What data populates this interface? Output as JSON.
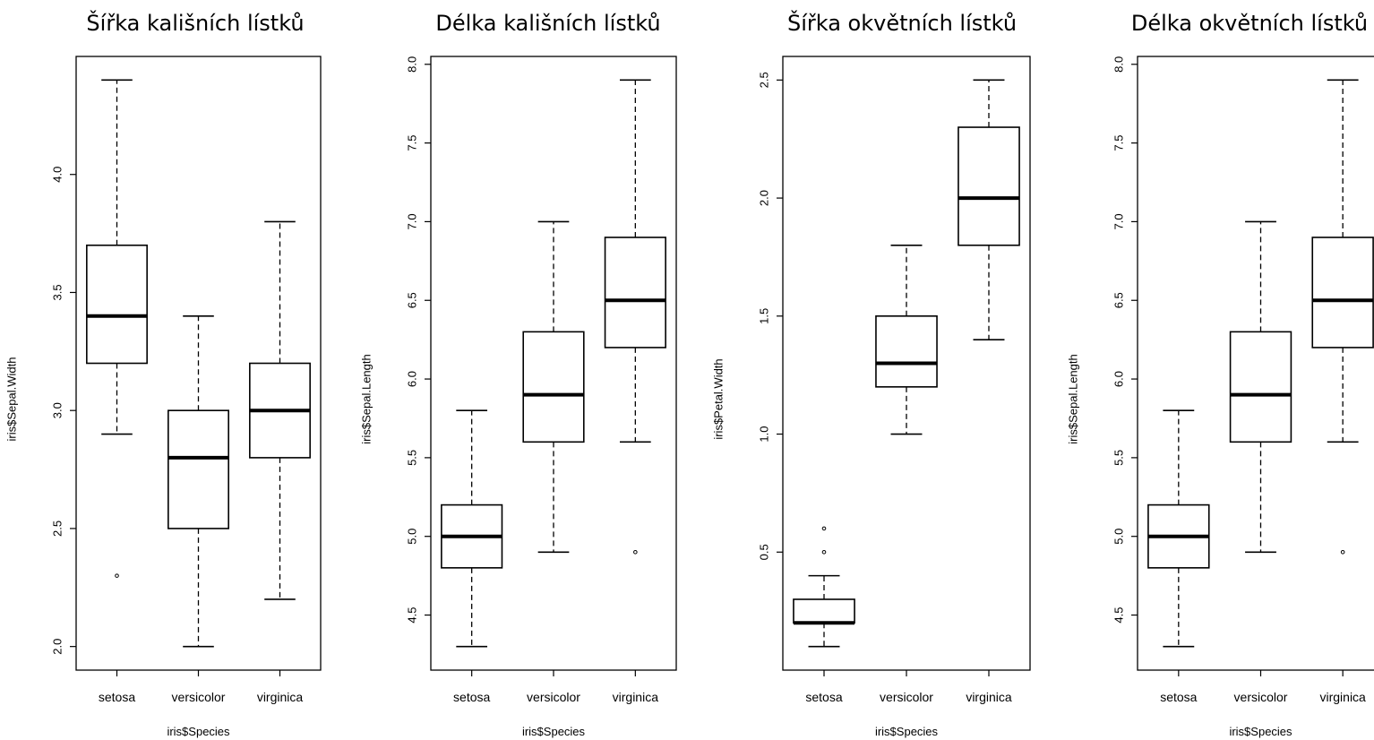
{
  "chart_data": [
    {
      "type": "boxplot",
      "title": "Šířka kališních lístků",
      "xlabel": "iris$Species",
      "ylabel": "iris$Sepal.Width",
      "categories": [
        "setosa",
        "versicolor",
        "virginica"
      ],
      "ylim": [
        1.9,
        4.5
      ],
      "yticks": [
        "2.0",
        "2.5",
        "3.0",
        "3.5",
        "4.0"
      ],
      "boxes": [
        {
          "whisker_low": 2.9,
          "q1": 3.2,
          "median": 3.4,
          "q3": 3.7,
          "whisker_high": 4.4,
          "outliers": [
            2.3
          ]
        },
        {
          "whisker_low": 2.0,
          "q1": 2.5,
          "median": 2.8,
          "q3": 3.0,
          "whisker_high": 3.4,
          "outliers": []
        },
        {
          "whisker_low": 2.2,
          "q1": 2.8,
          "median": 3.0,
          "q3": 3.2,
          "whisker_high": 3.8,
          "outliers": []
        }
      ]
    },
    {
      "type": "boxplot",
      "title": "Délka kališních lístků",
      "xlabel": "iris$Species",
      "ylabel": "iris$Sepal.Length",
      "categories": [
        "setosa",
        "versicolor",
        "virginica"
      ],
      "ylim": [
        4.15,
        8.05
      ],
      "yticks": [
        "4.5",
        "5.0",
        "5.5",
        "6.0",
        "6.5",
        "7.0",
        "7.5",
        "8.0"
      ],
      "boxes": [
        {
          "whisker_low": 4.3,
          "q1": 4.8,
          "median": 5.0,
          "q3": 5.2,
          "whisker_high": 5.8,
          "outliers": []
        },
        {
          "whisker_low": 4.9,
          "q1": 5.6,
          "median": 5.9,
          "q3": 6.3,
          "whisker_high": 7.0,
          "outliers": []
        },
        {
          "whisker_low": 5.6,
          "q1": 6.2,
          "median": 6.5,
          "q3": 6.9,
          "whisker_high": 7.9,
          "outliers": [
            4.9
          ]
        }
      ]
    },
    {
      "type": "boxplot",
      "title": "Šířka okvětních lístků",
      "xlabel": "iris$Species",
      "ylabel": "iris$Petal.Width",
      "categories": [
        "setosa",
        "versicolor",
        "virginica"
      ],
      "ylim": [
        0.0,
        2.6
      ],
      "yticks": [
        "0.5",
        "1.0",
        "1.5",
        "2.0",
        "2.5"
      ],
      "boxes": [
        {
          "whisker_low": 0.1,
          "q1": 0.2,
          "median": 0.2,
          "q3": 0.3,
          "whisker_high": 0.4,
          "outliers": [
            0.5,
            0.6
          ]
        },
        {
          "whisker_low": 1.0,
          "q1": 1.2,
          "median": 1.3,
          "q3": 1.5,
          "whisker_high": 1.8,
          "outliers": []
        },
        {
          "whisker_low": 1.4,
          "q1": 1.8,
          "median": 2.0,
          "q3": 2.3,
          "whisker_high": 2.5,
          "outliers": []
        }
      ]
    },
    {
      "type": "boxplot",
      "title": "Délka okvětních lístků",
      "xlabel": "iris$Species",
      "ylabel": "iris$Sepal.Length",
      "categories": [
        "setosa",
        "versicolor",
        "virginica"
      ],
      "ylim": [
        4.15,
        8.05
      ],
      "yticks": [
        "4.5",
        "5.0",
        "5.5",
        "6.0",
        "6.5",
        "7.0",
        "7.5",
        "8.0"
      ],
      "boxes": [
        {
          "whisker_low": 4.3,
          "q1": 4.8,
          "median": 5.0,
          "q3": 5.2,
          "whisker_high": 5.8,
          "outliers": []
        },
        {
          "whisker_low": 4.9,
          "q1": 5.6,
          "median": 5.9,
          "q3": 6.3,
          "whisker_high": 7.0,
          "outliers": []
        },
        {
          "whisker_low": 5.6,
          "q1": 6.2,
          "median": 6.5,
          "q3": 6.9,
          "whisker_high": 7.9,
          "outliers": [
            4.9
          ]
        }
      ]
    }
  ]
}
